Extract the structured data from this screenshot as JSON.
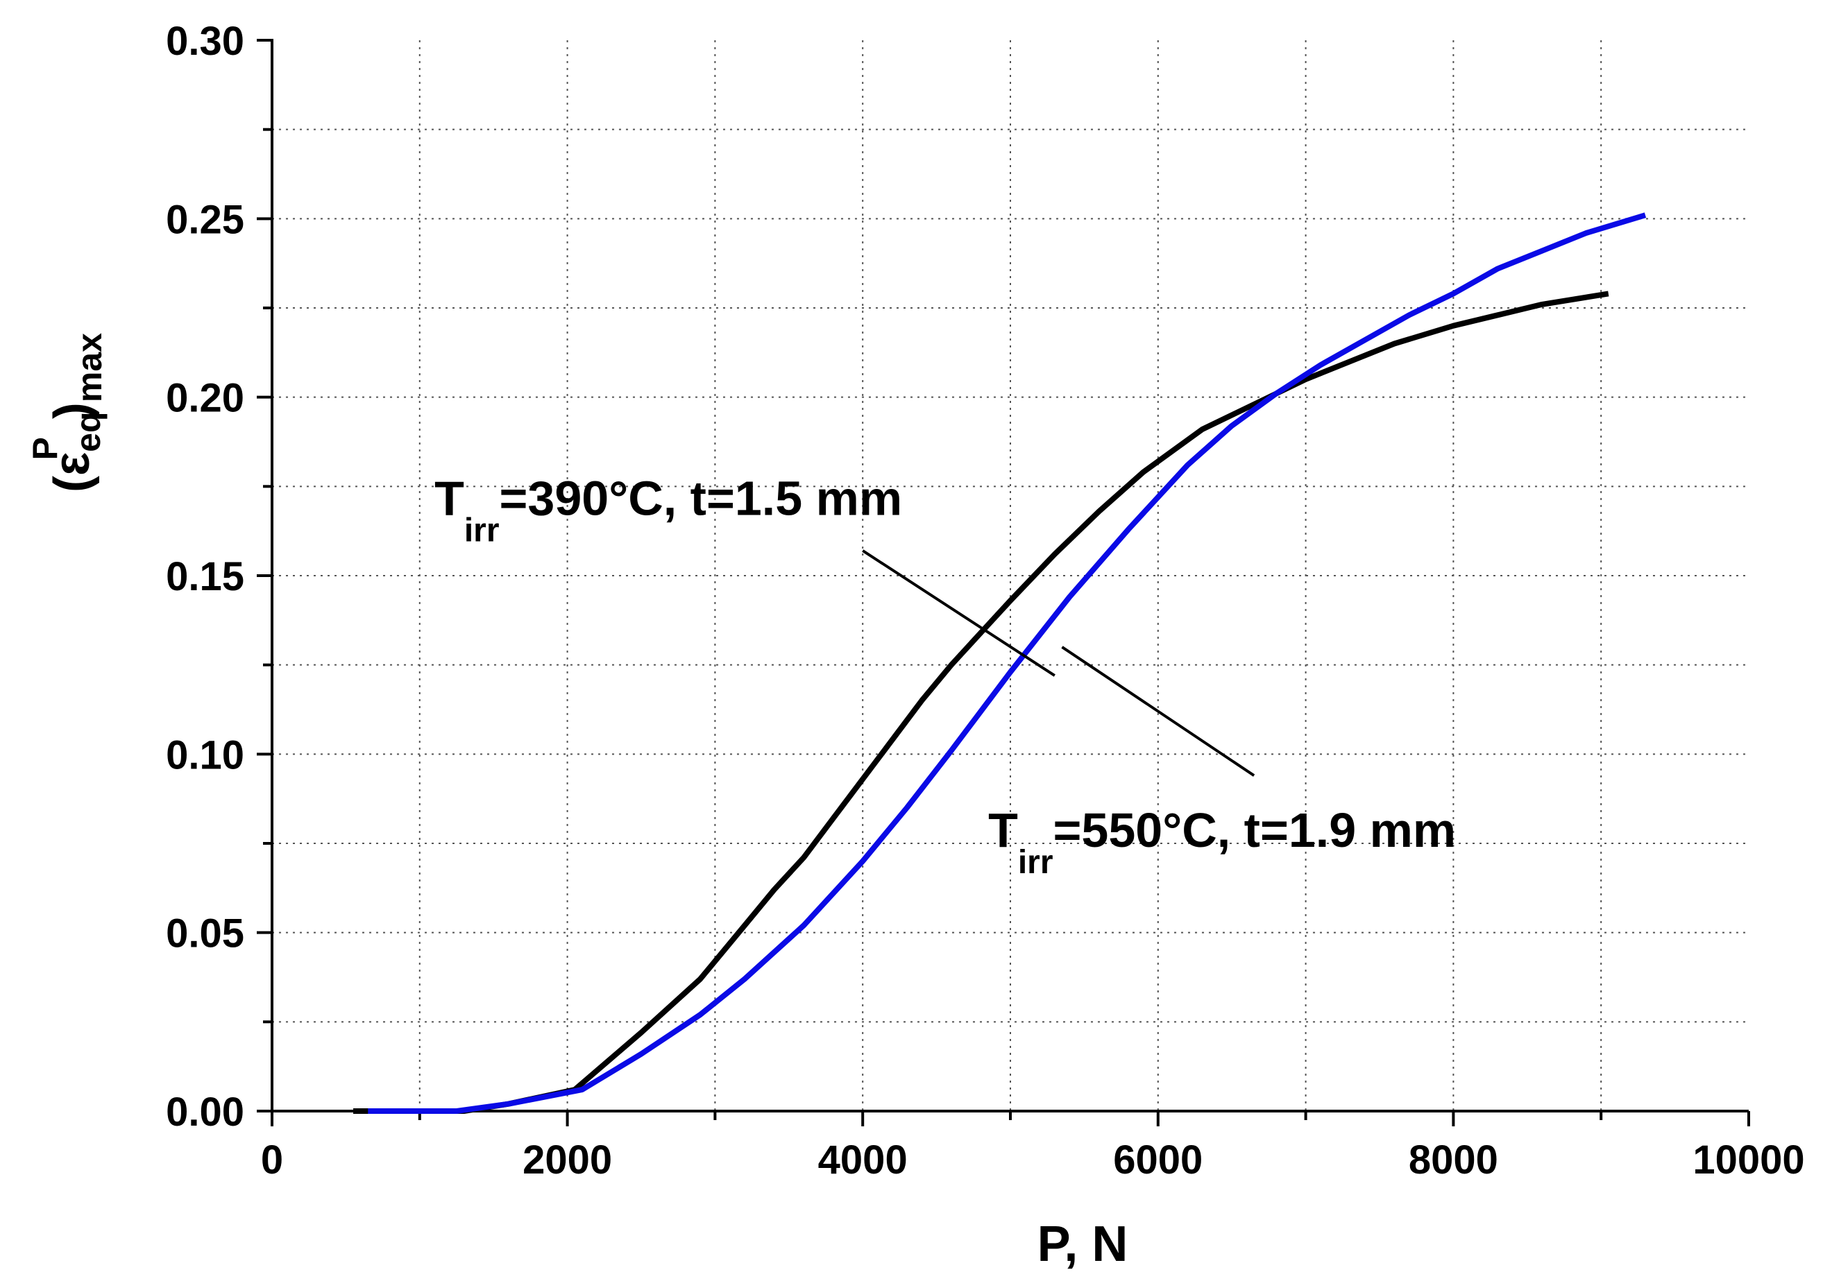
{
  "chart_data": {
    "type": "line",
    "title": "",
    "xlabel": "P, N",
    "ylabel": {
      "prefix": "(",
      "symbol": "ε",
      "sub": "eq",
      "sup": "P",
      "close": ")",
      "outer_sub": "max"
    },
    "xlim": [
      0,
      10000
    ],
    "ylim": [
      0,
      0.3
    ],
    "xticks": [
      0,
      2000,
      4000,
      6000,
      8000,
      10000
    ],
    "xtick_labels": [
      "0",
      "2000",
      "4000",
      "6000",
      "8000",
      "10000"
    ],
    "yticks": [
      0.0,
      0.05,
      0.1,
      0.15,
      0.2,
      0.25,
      0.3
    ],
    "ytick_labels": [
      "0.00",
      "0.05",
      "0.10",
      "0.15",
      "0.20",
      "0.25",
      "0.30"
    ],
    "grid": true,
    "series": [
      {
        "color": "#000000",
        "x": [
          550,
          1000,
          1300,
          1600,
          2050,
          2500,
          2900,
          3200,
          3400,
          3600,
          3800,
          4000,
          4200,
          4400,
          4600,
          4800,
          5000,
          5300,
          5600,
          5900,
          6300,
          6700,
          7000,
          7300,
          7600,
          8000,
          8300,
          8600,
          9050
        ],
        "y": [
          0.0,
          0.0,
          0.0,
          0.002,
          0.006,
          0.022,
          0.037,
          0.052,
          0.062,
          0.071,
          0.082,
          0.093,
          0.104,
          0.115,
          0.125,
          0.134,
          0.143,
          0.156,
          0.168,
          0.179,
          0.191,
          0.199,
          0.205,
          0.21,
          0.215,
          0.22,
          0.223,
          0.226,
          0.229
        ]
      },
      {
        "color": "#0a0ae6",
        "x": [
          650,
          1000,
          1250,
          1600,
          2100,
          2500,
          2900,
          3200,
          3600,
          4000,
          4300,
          4600,
          5000,
          5400,
          5800,
          6200,
          6500,
          6800,
          7100,
          7400,
          7700,
          8000,
          8300,
          8600,
          8900,
          9300
        ],
        "y": [
          0.0,
          0.0,
          0.0,
          0.002,
          0.006,
          0.016,
          0.027,
          0.037,
          0.052,
          0.07,
          0.085,
          0.101,
          0.123,
          0.144,
          0.163,
          0.181,
          0.192,
          0.201,
          0.209,
          0.216,
          0.223,
          0.229,
          0.236,
          0.241,
          0.246,
          0.251
        ]
      }
    ],
    "annotations": [
      {
        "main": "T",
        "sub": "irr",
        "rest": "=390°C, t=1.5 mm",
        "text_x": 1100,
        "text_y": 0.167,
        "line_from": [
          4000,
          0.157
        ],
        "line_to": [
          5300,
          0.122
        ]
      },
      {
        "main": "T",
        "sub": "irr",
        "rest": "=550°C, t=1.9 mm",
        "text_x": 4850,
        "text_y": 0.074,
        "line_from": [
          5350,
          0.13
        ],
        "line_to": [
          6650,
          0.094
        ]
      }
    ]
  }
}
